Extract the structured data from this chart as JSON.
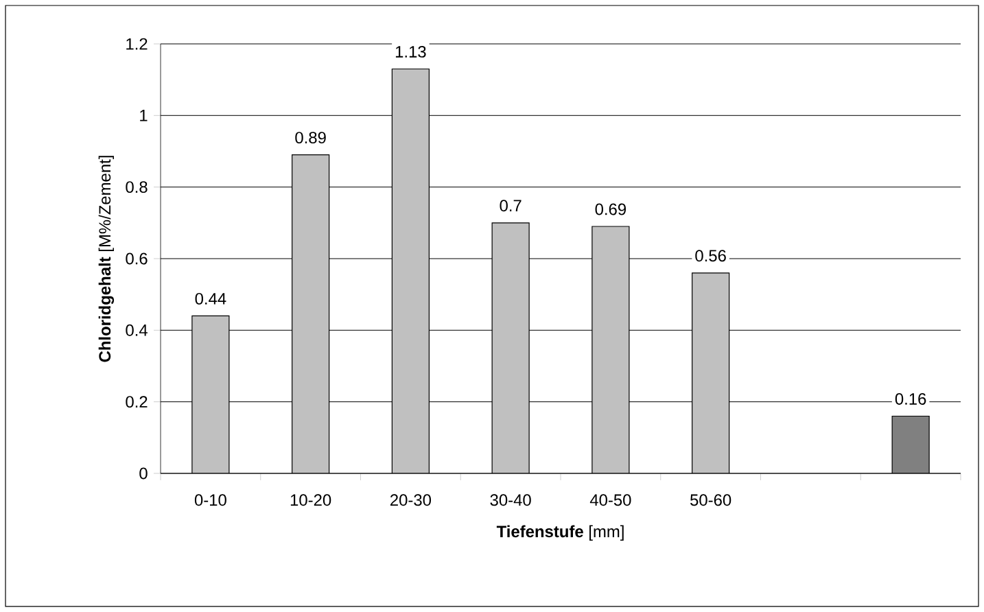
{
  "chart_data": {
    "type": "bar",
    "xlabel": "**Tiefenstufe** [mm]",
    "ylabel": "**Chloridgehalt** [M%/Zement]",
    "categories": [
      "0-10",
      "10-20",
      "20-30",
      "30-40",
      "40-50",
      "50-60",
      null,
      null
    ],
    "values": [
      0.44,
      0.89,
      1.13,
      0.7,
      0.69,
      0.56,
      null,
      0.16
    ],
    "colors": [
      "#c0c0c0",
      "#c0c0c0",
      "#c0c0c0",
      "#c0c0c0",
      "#c0c0c0",
      "#c0c0c0",
      "#c0c0c0",
      "#808080"
    ],
    "ylim": [
      0,
      1.2
    ],
    "yticks": [
      0,
      0.2,
      0.4,
      0.6,
      0.8,
      1,
      1.2
    ],
    "grid": "y",
    "data_labels": true
  }
}
